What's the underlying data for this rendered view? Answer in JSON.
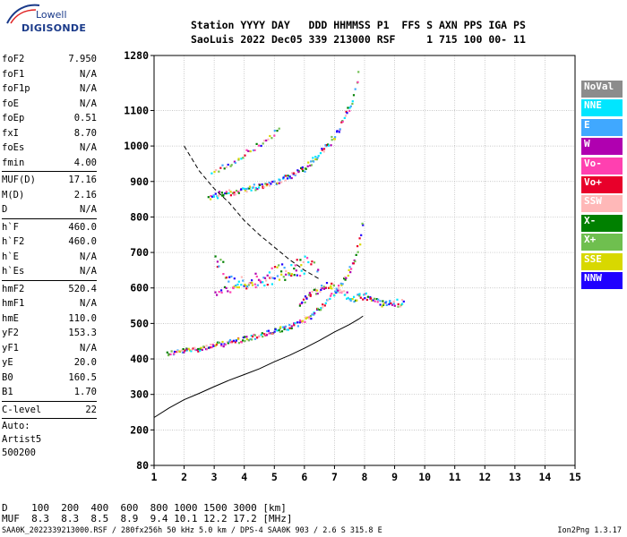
{
  "logo": {
    "line1": "Lowell",
    "line2": "DIGISONDE"
  },
  "header": {
    "line1": "Station YYYY DAY   DDD HHMMSS P1  FFS S AXN PPS IGA PS",
    "line2": "SaoLuis 2022 Dec05 339 213000 RSF     1 715 100 00- 11"
  },
  "params": [
    {
      "label": "foF2",
      "value": "7.950"
    },
    {
      "label": "foF1",
      "value": "N/A"
    },
    {
      "label": "foF1p",
      "value": "N/A"
    },
    {
      "label": "foE",
      "value": "N/A"
    },
    {
      "label": "foEp",
      "value": "0.51"
    },
    {
      "label": "fxI",
      "value": "8.70"
    },
    {
      "label": "foEs",
      "value": "N/A"
    },
    {
      "label": "fmin",
      "value": "4.00"
    },
    {
      "sep": true
    },
    {
      "label": "MUF(D)",
      "value": "17.16"
    },
    {
      "label": "M(D)",
      "value": "2.16"
    },
    {
      "label": "D",
      "value": "N/A"
    },
    {
      "sep": true
    },
    {
      "label": "h`F",
      "value": "460.0"
    },
    {
      "label": "h`F2",
      "value": "460.0"
    },
    {
      "label": "h`E",
      "value": "N/A"
    },
    {
      "label": "h`Es",
      "value": "N/A"
    },
    {
      "sep": true
    },
    {
      "label": "hmF2",
      "value": "520.4"
    },
    {
      "label": "hmF1",
      "value": "N/A"
    },
    {
      "label": "hmE",
      "value": "110.0"
    },
    {
      "label": "yF2",
      "value": "153.3"
    },
    {
      "label": "yF1",
      "value": "N/A"
    },
    {
      "label": "yE",
      "value": "20.0"
    },
    {
      "label": "B0",
      "value": "160.5"
    },
    {
      "label": "B1",
      "value": "1.70"
    },
    {
      "sep": true
    },
    {
      "label": "C-level",
      "value": "22"
    },
    {
      "sep": true
    },
    {
      "note": "Auto:"
    },
    {
      "note": "Artist5"
    },
    {
      "note": "500200"
    }
  ],
  "legend": [
    {
      "label": "NoVal",
      "color": "#8c8c8c"
    },
    {
      "label": "NNE",
      "color": "#00e6ff"
    },
    {
      "label": "E",
      "color": "#40a8ff"
    },
    {
      "label": "W",
      "color": "#b000b0"
    },
    {
      "label": "Vo-",
      "color": "#ff40b0"
    },
    {
      "label": "Vo+",
      "color": "#e8002a"
    },
    {
      "label": "SSW",
      "color": "#ffb8b8"
    },
    {
      "label": "X-",
      "color": "#008000"
    },
    {
      "label": "X+",
      "color": "#6fbf4f"
    },
    {
      "label": "SSE",
      "color": "#d8d800"
    },
    {
      "label": "NNW",
      "color": "#2000ff"
    }
  ],
  "chart_data": {
    "type": "scatter",
    "title": "",
    "xlabel": "",
    "ylabel": "",
    "xlim": [
      1,
      15
    ],
    "ylim": [
      80,
      1280
    ],
    "x_ticks": [
      "1",
      "2",
      "3",
      "4",
      "5",
      "6",
      "7",
      "8",
      "9",
      "10",
      "11",
      "12",
      "13",
      "14",
      "15"
    ],
    "y_ticks": [
      "80",
      "200",
      "300",
      "400",
      "500",
      "600",
      "700",
      "800",
      "900",
      "1000",
      "1100",
      "1280"
    ],
    "y_tick_values": [
      80,
      200,
      300,
      400,
      500,
      600,
      700,
      800,
      900,
      1000,
      1100,
      1280
    ],
    "grid": true,
    "y_scale": "ionogram-height",
    "traces": [
      {
        "name": "F2 O-trace",
        "kind": "dots",
        "spread": 6,
        "density": 2,
        "x": [
          1.4,
          2.0,
          3.0,
          4.0,
          5.0,
          5.7,
          6.2,
          6.6,
          7.0,
          7.4,
          7.7,
          7.95
        ],
        "y": [
          418,
          425,
          440,
          458,
          480,
          498,
          525,
          555,
          590,
          640,
          690,
          800
        ]
      },
      {
        "name": "F2 X-trace",
        "kind": "dots",
        "spread": 8,
        "density": 2,
        "x": [
          5.8,
          6.3,
          6.8,
          7.2,
          7.6,
          8.0,
          8.5,
          9.0,
          9.3
        ],
        "y": [
          560,
          590,
          610,
          590,
          570,
          580,
          560,
          560,
          560
        ]
      },
      {
        "name": "Multi-hop trace",
        "kind": "dots",
        "spread": 7,
        "density": 2,
        "x": [
          2.8,
          3.5,
          4.5,
          5.5,
          6.0,
          6.5,
          7.0,
          7.3,
          7.6,
          7.8
        ],
        "y": [
          860,
          870,
          890,
          915,
          940,
          980,
          1030,
          1080,
          1140,
          1235
        ]
      },
      {
        "name": "Upper diffuse trace",
        "kind": "dots",
        "spread": 6,
        "density": 1,
        "x": [
          2.9,
          3.5,
          4.0,
          4.7,
          5.2
        ],
        "y": [
          930,
          950,
          980,
          1020,
          1050
        ]
      },
      {
        "name": "Mid diffuse trace",
        "kind": "dots",
        "spread": 8,
        "density": 1,
        "x": [
          3.0,
          3.5,
          4.0,
          4.5,
          5.0,
          5.5,
          6.0
        ],
        "y": [
          590,
          600,
          605,
          615,
          625,
          640,
          650
        ]
      },
      {
        "name": "Spread F echoes",
        "kind": "dots",
        "spread": 14,
        "density": 1,
        "x": [
          3.0,
          3.2,
          3.4,
          3.6,
          5.5,
          6.0,
          6.5
        ],
        "y": [
          680,
          670,
          640,
          610,
          660,
          680,
          660
        ]
      }
    ],
    "profile": {
      "x": [
        1.0,
        1.5,
        2.0,
        2.5,
        3.0,
        3.5,
        4.0,
        4.5,
        5.0,
        5.5,
        6.0,
        6.5,
        7.0,
        7.5,
        7.8,
        7.95
      ],
      "y": [
        235,
        262,
        285,
        303,
        322,
        340,
        356,
        372,
        392,
        410,
        430,
        452,
        476,
        497,
        512,
        521
      ]
    },
    "muf_curve": {
      "x": [
        2.0,
        2.5,
        3.0,
        3.5,
        4.0,
        4.5,
        5.0,
        5.5,
        6.0,
        6.5
      ],
      "y": [
        1000,
        930,
        880,
        840,
        790,
        750,
        715,
        680,
        650,
        625
      ]
    }
  },
  "footer": {
    "d_label": "D",
    "d_values": "100  200  400  600  800 1000 1500 3000 [km]",
    "m_label": "MUF",
    "m_values": "8.3  8.3  8.5  8.9  9.4 10.1 12.2 17.2 [MHz]",
    "file_info": "SAA0K_2022339213000.RSF / 280fx256h 50 kHz 5.0 km / DPS-4 SAA0K 903 / 2.6 S 315.8 E",
    "version": "Ion2Png 1.3.17"
  }
}
